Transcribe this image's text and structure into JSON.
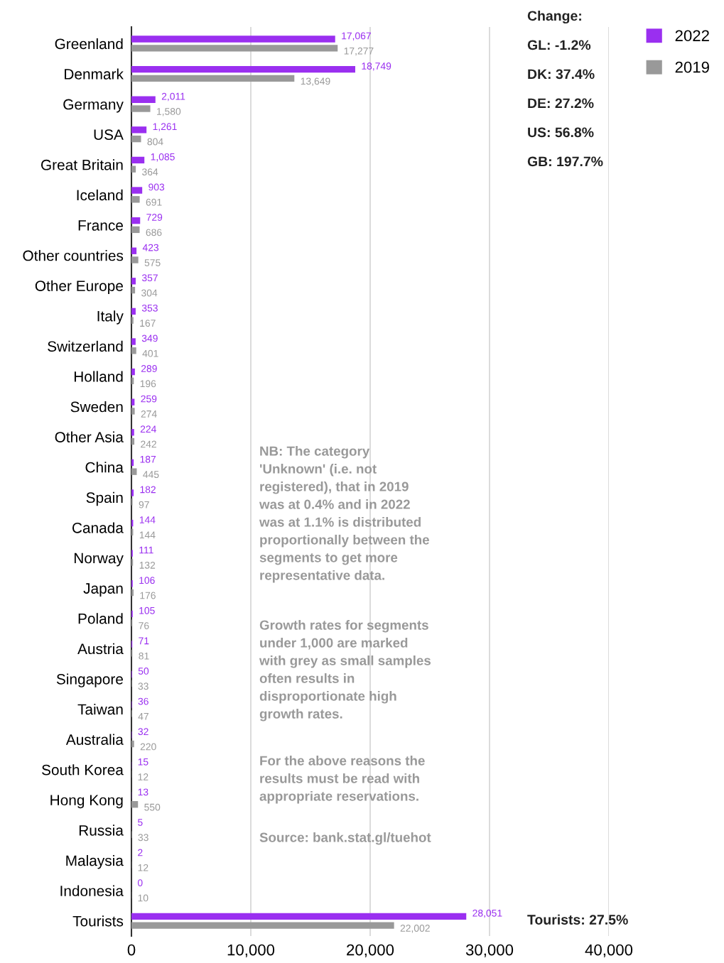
{
  "chart_data": {
    "type": "bar",
    "orientation": "horizontal",
    "categories": [
      "Greenland",
      "Denmark",
      "Germany",
      "USA",
      "Great Britain",
      "Iceland",
      "France",
      "Other countries",
      "Other Europe",
      "Italy",
      "Switzerland",
      "Holland",
      "Sweden",
      "Other Asia",
      "China",
      "Spain",
      "Canada",
      "Norway",
      "Japan",
      "Poland",
      "Austria",
      "Singapore",
      "Taiwan",
      "Australia",
      "South Korea",
      "Hong Kong",
      "Russia",
      "Malaysia",
      "Indonesia",
      "Tourists"
    ],
    "series": [
      {
        "name": "2022",
        "color": "#9a2ff0",
        "values": [
          17067,
          18749,
          2011,
          1261,
          1085,
          903,
          729,
          423,
          357,
          353,
          349,
          289,
          259,
          224,
          187,
          182,
          144,
          111,
          106,
          105,
          71,
          50,
          36,
          32,
          15,
          13,
          5,
          2,
          0,
          28051
        ],
        "value_labels": [
          "17,067",
          "18,749",
          "2,011",
          "1,261",
          "1,085",
          "903",
          "729",
          "423",
          "357",
          "353",
          "349",
          "289",
          "259",
          "224",
          "187",
          "182",
          "144",
          "111",
          "106",
          "105",
          "71",
          "50",
          "36",
          "32",
          "15",
          "13",
          "5",
          "2",
          "0",
          "28,051"
        ]
      },
      {
        "name": "2019",
        "color": "#999999",
        "values": [
          17277,
          13649,
          1580,
          804,
          364,
          691,
          686,
          575,
          304,
          167,
          401,
          196,
          274,
          242,
          445,
          97,
          144,
          132,
          176,
          76,
          81,
          33,
          47,
          220,
          12,
          550,
          33,
          12,
          10,
          22002
        ],
        "value_labels": [
          "17,277",
          "13,649",
          "1,580",
          "804",
          "364",
          "691",
          "686",
          "575",
          "304",
          "167",
          "401",
          "196",
          "274",
          "242",
          "445",
          "97",
          "144",
          "132",
          "176",
          "76",
          "81",
          "33",
          "47",
          "220",
          "12",
          "550",
          "33",
          "12",
          "10",
          "22,002"
        ]
      }
    ],
    "xlim": [
      0,
      40000
    ],
    "xticks": [
      {
        "value": 0,
        "label": "0"
      },
      {
        "value": 10000,
        "label": "10,000"
      },
      {
        "value": 20000,
        "label": "20,000"
      },
      {
        "value": 30000,
        "label": "30,000"
      },
      {
        "value": 40000,
        "label": "40,000"
      }
    ],
    "grid": "x",
    "legend": "top right",
    "annotations": [
      "Change:",
      "GL: -1.2%",
      "DK: 37.4%",
      "DE: 27.2%",
      "US: 56.8%",
      "GB: 197.7%",
      "NB: The category\n'Unknown' (i.e. not\nregistered), that in 2019\nwas at 0.4% and in 2022\nwas at 1.1% is distributed\nproportionally between the\nsegments to get more\nrepresentative data.",
      "Growth rates for segments\nunder 1,000 are marked\nwith grey as small samples\noften results in\ndisproportionate high\ngrowth rates.",
      "For the above reasons the\nresults must be read with\nappropriate reservations.",
      "Source: bank.stat.gl/tuehot",
      "Tourists: 27.5%"
    ]
  }
}
